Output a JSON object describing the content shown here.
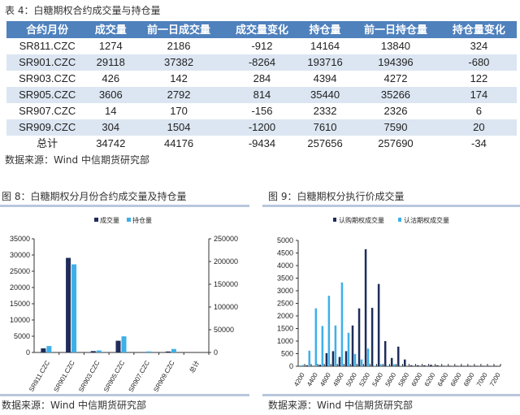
{
  "table": {
    "title": "表 4：白糖期权合约成交量与持仓量",
    "headers": [
      "合约月份",
      "成交量",
      "前一日成交量",
      "成交量变化",
      "持仓量",
      "前一日持仓量",
      "持仓量变化"
    ],
    "rows": [
      [
        "SR811.CZC",
        "1274",
        "2186",
        "-912",
        "14164",
        "13840",
        "324"
      ],
      [
        "SR901.CZC",
        "29118",
        "37382",
        "-8264",
        "193716",
        "194396",
        "-680"
      ],
      [
        "SR903.CZC",
        "426",
        "142",
        "284",
        "4394",
        "4272",
        "122"
      ],
      [
        "SR905.CZC",
        "3606",
        "2792",
        "814",
        "35440",
        "35266",
        "174"
      ],
      [
        "SR907.CZC",
        "14",
        "170",
        "-156",
        "2332",
        "2326",
        "6"
      ],
      [
        "SR909.CZC",
        "304",
        "1504",
        "-1200",
        "7610",
        "7590",
        "20"
      ],
      [
        "总计",
        "34742",
        "44176",
        "-9434",
        "257656",
        "257690",
        "-34"
      ]
    ],
    "source": "数据来源：Wind 中信期货研究部"
  },
  "colors": {
    "header": "#4f81bd",
    "dark": "#1f2d5a",
    "light": "#3db0e8"
  },
  "chart_data": [
    {
      "type": "bar",
      "title": "图 8：白糖期权分月份合约成交量及持仓量",
      "categories": [
        "SR811.CZC",
        "SR901.CZC",
        "SR903.CZC",
        "SR905.CZC",
        "SR907.CZC",
        "SR909.CZC",
        "总计"
      ],
      "series": [
        {
          "name": "成交量",
          "axis": "left",
          "values": [
            1274,
            29118,
            426,
            3606,
            14,
            304,
            null
          ]
        },
        {
          "name": "持仓量",
          "axis": "right",
          "values": [
            14164,
            193716,
            4394,
            35440,
            2332,
            7610,
            null
          ]
        }
      ],
      "ylim_left": [
        0,
        35000
      ],
      "yticks_left": [
        "0",
        "5000",
        "10000",
        "15000",
        "20000",
        "25000",
        "30000",
        "35000"
      ],
      "ylim_right": [
        0,
        250000
      ],
      "yticks_right": [
        "0",
        "50000",
        "100000",
        "150000",
        "200000",
        "250000"
      ],
      "legend": "top",
      "source": "数据来源：Wind 中信期货研究部"
    },
    {
      "type": "bar",
      "title": "图 9：白糖期权分执行价成交量",
      "x": [
        4200,
        4300,
        4400,
        4500,
        4600,
        4700,
        4800,
        4900,
        5000,
        5100,
        5200,
        5300,
        5400,
        5500,
        5600,
        5700,
        5800,
        5900,
        6000,
        6100,
        6200,
        6300,
        6400,
        6500,
        6600,
        6700,
        6800,
        6900,
        7000,
        7100,
        7200
      ],
      "xtick_labels": [
        "4200",
        "4400",
        "4600",
        "4800",
        "5000",
        "5200",
        "5400",
        "5600",
        "5800",
        "6000",
        "6200",
        "6400",
        "6600",
        "6800",
        "7000",
        "7200"
      ],
      "series": [
        {
          "name": "认购期权成交量",
          "values": [
            10,
            40,
            0,
            60,
            520,
            600,
            370,
            600,
            1620,
            2300,
            4650,
            2320,
            3270,
            1000,
            330,
            780,
            270,
            40,
            40,
            40,
            60,
            40,
            20,
            20,
            20,
            20,
            20,
            20,
            20,
            20,
            20
          ]
        },
        {
          "name": "认沽期权成交量",
          "values": [
            50,
            620,
            2300,
            1600,
            2800,
            1620,
            3330,
            1330,
            490,
            270,
            700,
            20,
            80,
            20,
            80,
            10,
            0,
            0,
            0,
            0,
            0,
            0,
            0,
            0,
            0,
            0,
            0,
            0,
            0,
            0,
            0
          ]
        }
      ],
      "ylim": [
        0,
        5000
      ],
      "yticks": [
        "0",
        "500",
        "1000",
        "1500",
        "2000",
        "2500",
        "3000",
        "3500",
        "4000",
        "4500",
        "5000"
      ],
      "legend": "top",
      "source": "数据来源：Wind 中信期货研究部"
    }
  ]
}
